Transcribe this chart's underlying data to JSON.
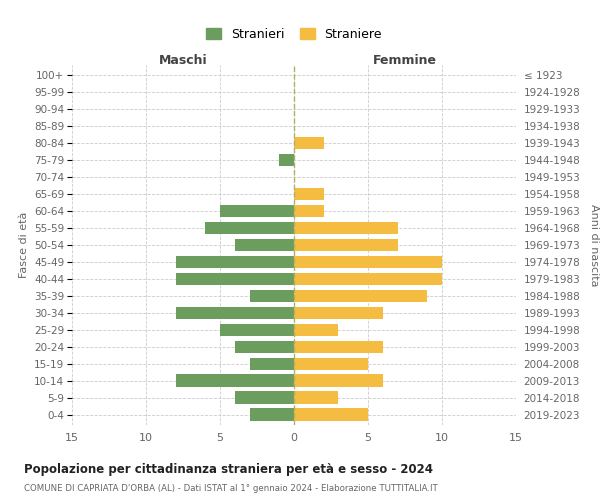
{
  "age_groups": [
    "0-4",
    "5-9",
    "10-14",
    "15-19",
    "20-24",
    "25-29",
    "30-34",
    "35-39",
    "40-44",
    "45-49",
    "50-54",
    "55-59",
    "60-64",
    "65-69",
    "70-74",
    "75-79",
    "80-84",
    "85-89",
    "90-94",
    "95-99",
    "100+"
  ],
  "birth_years": [
    "2019-2023",
    "2014-2018",
    "2009-2013",
    "2004-2008",
    "1999-2003",
    "1994-1998",
    "1989-1993",
    "1984-1988",
    "1979-1983",
    "1974-1978",
    "1969-1973",
    "1964-1968",
    "1959-1963",
    "1954-1958",
    "1949-1953",
    "1944-1948",
    "1939-1943",
    "1934-1938",
    "1929-1933",
    "1924-1928",
    "≤ 1923"
  ],
  "males": [
    3,
    4,
    8,
    3,
    4,
    5,
    8,
    3,
    8,
    8,
    4,
    6,
    5,
    0,
    0,
    1,
    0,
    0,
    0,
    0,
    0
  ],
  "females": [
    5,
    3,
    6,
    5,
    6,
    3,
    6,
    9,
    10,
    10,
    7,
    7,
    2,
    2,
    0,
    0,
    2,
    0,
    0,
    0,
    0
  ],
  "male_color": "#6b9e5e",
  "female_color": "#f5bc42",
  "background_color": "#ffffff",
  "grid_color": "#cccccc",
  "title": "Popolazione per cittadinanza straniera per età e sesso - 2024",
  "subtitle": "COMUNE DI CAPRIATA D'ORBA (AL) - Dati ISTAT al 1° gennaio 2024 - Elaborazione TUTTITALIA.IT",
  "xlabel_left": "Maschi",
  "xlabel_right": "Femmine",
  "ylabel_left": "Fasce di età",
  "ylabel_right": "Anni di nascita",
  "legend_male": "Stranieri",
  "legend_female": "Straniere",
  "xlim": 15,
  "bar_height": 0.75
}
